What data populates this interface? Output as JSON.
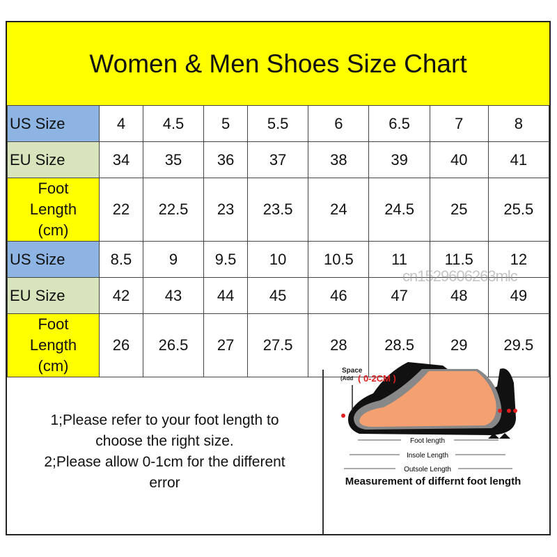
{
  "title": "Women & Men Shoes Size Chart",
  "rows": [
    {
      "label": "US Size",
      "type": "us",
      "values": [
        "4",
        "4.5",
        "5",
        "5.5",
        "6",
        "6.5",
        "7",
        "8"
      ]
    },
    {
      "label": "EU Size",
      "type": "eu",
      "values": [
        "34",
        "35",
        "36",
        "37",
        "38",
        "39",
        "40",
        "41"
      ]
    },
    {
      "label": "Foot Length (cm)",
      "label_lines": [
        "Foot",
        "Length",
        "(cm)"
      ],
      "type": "fl",
      "values": [
        "22",
        "22.5",
        "23",
        "23.5",
        "24",
        "24.5",
        "25",
        "25.5"
      ]
    },
    {
      "label": "US Size",
      "type": "us",
      "values": [
        "8.5",
        "9",
        "9.5",
        "10",
        "10.5",
        "11",
        "11.5",
        "12"
      ]
    },
    {
      "label": "EU Size",
      "type": "eu",
      "values": [
        "42",
        "43",
        "44",
        "45",
        "46",
        "47",
        "48",
        "49"
      ]
    },
    {
      "label": "Foot Length (cm)",
      "label_lines": [
        "Foot",
        "Length",
        "(cm)"
      ],
      "type": "fl",
      "values": [
        "26",
        "26.5",
        "27",
        "27.5",
        "28",
        "28.5",
        "29",
        "29.5"
      ]
    }
  ],
  "notes": [
    "1;Please refer to your foot length to",
    "choose the right size.",
    "2;Please allow 0-1cm for the different",
    "error"
  ],
  "illustration": {
    "space_label": "Space",
    "add_label": "(Add",
    "space_value": "( 0-2CM )",
    "foot_length": "Foot length",
    "insole_length": "Insole Length",
    "outsole_length": "Outsole Length",
    "caption": "Measurement of differnt foot length"
  },
  "watermark": "cn1529606263mlc",
  "colors": {
    "title_bg": "#ffff00",
    "us_bg": "#8db4e2",
    "eu_bg": "#d8e4bc",
    "foot_bg": "#ffff00"
  }
}
